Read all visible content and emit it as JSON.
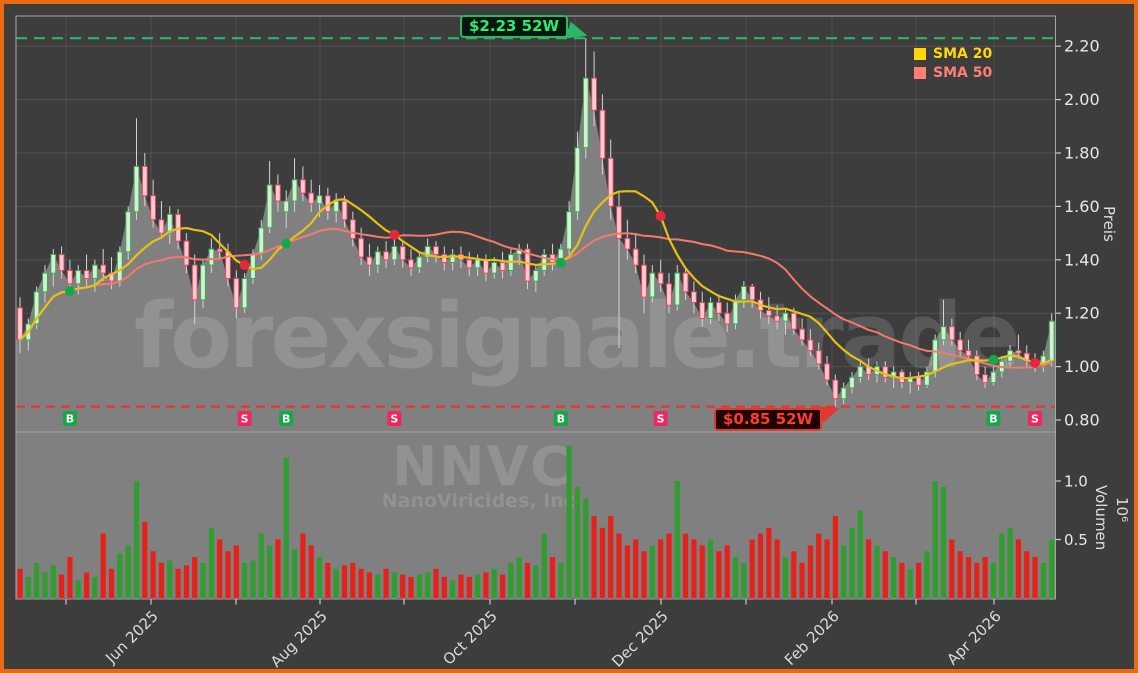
{
  "watermarks": {
    "brand": "forexsignale.trade",
    "symbol": "NNVC",
    "company": "NanoViricides, Inc."
  },
  "legend": [
    {
      "label": "SMA 20",
      "color": "#ffd60a"
    },
    {
      "label": "SMA 50",
      "color": "#ff7f73"
    }
  ],
  "annotations": {
    "high": {
      "label": "$2.23 52W",
      "value": 2.23
    },
    "low": {
      "label": "$0.85 52W",
      "value": 0.85
    }
  },
  "axes": {
    "price": {
      "title": "Preis",
      "tick_labels": [
        "0.80",
        "1.00",
        "1.20",
        "1.40",
        "1.60",
        "1.80",
        "2.00",
        "2.20"
      ],
      "tick_values": [
        0.8,
        1.0,
        1.2,
        1.4,
        1.6,
        1.8,
        2.0,
        2.2
      ]
    },
    "volume": {
      "title": "Volumen",
      "multiplier": "10⁶",
      "tick_labels": [
        "0.5",
        "1.0"
      ],
      "tick_values": [
        0.5,
        1.0
      ]
    },
    "x": {
      "labels": [
        "Jun 2025",
        "Aug 2025",
        "Oct 2025",
        "Dec 2025",
        "Feb 2026",
        "Apr 2026"
      ],
      "label_tick_indices": [
        1,
        3,
        5,
        7,
        9,
        11
      ],
      "minor_tick_count": 12
    }
  },
  "colors": {
    "frame": "#ea6a12",
    "background": "#3d3d3d",
    "area_fill": "#808080",
    "grid": "rgba(255,255,255,0.10)",
    "spine": "#a6a6a6",
    "tick": "#cccccc",
    "tick_text": "#e8e8e8",
    "xtick_text": "#dcdcdc",
    "candle_up": "#2eb34c",
    "candle_up_fill": "#dcead8",
    "candle_down": "#f04460",
    "candle_down_fill": "#f5cdd5",
    "wick": "#d5d5d5",
    "sma20": "#e5c117",
    "sma50": "#f5796d",
    "vol_up": "#2f9e2f",
    "vol_down": "#e62119",
    "high_line": "#2fb566",
    "low_line": "#e53730",
    "buy": "#17a649",
    "sell": "#f2265c",
    "signal_text": "#ffffff",
    "dot_buy": "#17a649",
    "dot_sell": "#e8273c"
  },
  "chart_data": {
    "type": "candlestick",
    "symbol": "NNVC",
    "company": "NanoViricides, Inc.",
    "price_axis": {
      "label": "Preis",
      "range": [
        0.755,
        2.313
      ],
      "ticks": [
        0.8,
        1.0,
        1.2,
        1.4,
        1.6,
        1.8,
        2.0,
        2.2
      ]
    },
    "volume_axis": {
      "label": "Volumen",
      "scale": "10^6",
      "range": [
        0,
        1.42
      ],
      "ticks": [
        0.5,
        1.0
      ]
    },
    "x_axis": {
      "visible_labels": [
        "Jun 2025",
        "Aug 2025",
        "Oct 2025",
        "Dec 2025",
        "Feb 2026",
        "Apr 2026"
      ],
      "label_rotation": 45
    },
    "levels": {
      "high_52w": 2.23,
      "low_52w": 0.85
    },
    "overlays": [
      {
        "name": "SMA 20",
        "window": 10
      },
      {
        "name": "SMA 50",
        "window": 25
      }
    ],
    "signals": [
      {
        "index": 6,
        "type": "B"
      },
      {
        "index": 27,
        "type": "S"
      },
      {
        "index": 32,
        "type": "B"
      },
      {
        "index": 45,
        "type": "S"
      },
      {
        "index": 65,
        "type": "B"
      },
      {
        "index": 77,
        "type": "S"
      },
      {
        "index": 117,
        "type": "B"
      },
      {
        "index": 122,
        "type": "S"
      }
    ],
    "candles_format": [
      "open",
      "high",
      "low",
      "close",
      "volume_millions"
    ],
    "candles": [
      [
        1.22,
        1.26,
        1.05,
        1.1,
        0.25
      ],
      [
        1.1,
        1.18,
        1.06,
        1.16,
        0.18
      ],
      [
        1.16,
        1.3,
        1.14,
        1.28,
        0.3
      ],
      [
        1.28,
        1.38,
        1.24,
        1.35,
        0.22
      ],
      [
        1.35,
        1.44,
        1.3,
        1.42,
        0.28
      ],
      [
        1.42,
        1.45,
        1.33,
        1.36,
        0.2
      ],
      [
        1.36,
        1.4,
        1.28,
        1.31,
        0.35
      ],
      [
        1.31,
        1.38,
        1.27,
        1.36,
        0.15
      ],
      [
        1.36,
        1.42,
        1.3,
        1.33,
        0.22
      ],
      [
        1.33,
        1.4,
        1.28,
        1.38,
        0.18
      ],
      [
        1.38,
        1.44,
        1.32,
        1.35,
        0.55
      ],
      [
        1.35,
        1.41,
        1.29,
        1.32,
        0.25
      ],
      [
        1.32,
        1.45,
        1.3,
        1.43,
        0.38
      ],
      [
        1.43,
        1.6,
        1.4,
        1.58,
        0.45
      ],
      [
        1.58,
        1.93,
        1.55,
        1.75,
        1.0
      ],
      [
        1.75,
        1.8,
        1.6,
        1.64,
        0.65
      ],
      [
        1.64,
        1.7,
        1.52,
        1.55,
        0.4
      ],
      [
        1.55,
        1.62,
        1.48,
        1.5,
        0.3
      ],
      [
        1.5,
        1.6,
        1.46,
        1.57,
        0.32
      ],
      [
        1.57,
        1.59,
        1.44,
        1.47,
        0.25
      ],
      [
        1.47,
        1.5,
        1.35,
        1.38,
        0.28
      ],
      [
        1.38,
        1.42,
        1.16,
        1.25,
        0.35
      ],
      [
        1.25,
        1.4,
        1.22,
        1.38,
        0.3
      ],
      [
        1.38,
        1.48,
        1.35,
        1.44,
        0.6
      ],
      [
        1.44,
        1.5,
        1.4,
        1.43,
        0.5
      ],
      [
        1.43,
        1.46,
        1.3,
        1.33,
        0.4
      ],
      [
        1.33,
        1.36,
        1.18,
        1.22,
        0.45
      ],
      [
        1.22,
        1.35,
        1.2,
        1.33,
        0.3
      ],
      [
        1.33,
        1.44,
        1.31,
        1.42,
        0.32
      ],
      [
        1.42,
        1.55,
        1.4,
        1.52,
        0.55
      ],
      [
        1.52,
        1.77,
        1.5,
        1.68,
        0.45
      ],
      [
        1.68,
        1.72,
        1.58,
        1.62,
        0.5
      ],
      [
        1.58,
        1.66,
        1.52,
        1.62,
        1.2
      ],
      [
        1.62,
        1.78,
        1.58,
        1.7,
        0.42
      ],
      [
        1.7,
        1.75,
        1.62,
        1.65,
        0.55
      ],
      [
        1.65,
        1.7,
        1.58,
        1.61,
        0.45
      ],
      [
        1.61,
        1.68,
        1.56,
        1.64,
        0.35
      ],
      [
        1.64,
        1.67,
        1.55,
        1.58,
        0.3
      ],
      [
        1.58,
        1.65,
        1.54,
        1.62,
        0.25
      ],
      [
        1.62,
        1.64,
        1.52,
        1.55,
        0.28
      ],
      [
        1.55,
        1.58,
        1.45,
        1.48,
        0.3
      ],
      [
        1.48,
        1.52,
        1.38,
        1.41,
        0.25
      ],
      [
        1.41,
        1.46,
        1.34,
        1.38,
        0.22
      ],
      [
        1.38,
        1.45,
        1.35,
        1.43,
        0.2
      ],
      [
        1.43,
        1.47,
        1.37,
        1.4,
        0.25
      ],
      [
        1.4,
        1.48,
        1.38,
        1.45,
        0.22
      ],
      [
        1.45,
        1.47,
        1.37,
        1.4,
        0.2
      ],
      [
        1.4,
        1.44,
        1.34,
        1.37,
        0.18
      ],
      [
        1.37,
        1.43,
        1.35,
        1.41,
        0.2
      ],
      [
        1.41,
        1.48,
        1.39,
        1.45,
        0.22
      ],
      [
        1.45,
        1.47,
        1.39,
        1.42,
        0.25
      ],
      [
        1.42,
        1.45,
        1.36,
        1.39,
        0.18
      ],
      [
        1.39,
        1.44,
        1.36,
        1.42,
        0.15
      ],
      [
        1.42,
        1.45,
        1.37,
        1.4,
        0.2
      ],
      [
        1.4,
        1.43,
        1.34,
        1.37,
        0.18
      ],
      [
        1.37,
        1.42,
        1.34,
        1.4,
        0.2
      ],
      [
        1.4,
        1.42,
        1.32,
        1.35,
        0.22
      ],
      [
        1.35,
        1.41,
        1.33,
        1.39,
        0.25
      ],
      [
        1.39,
        1.43,
        1.33,
        1.36,
        0.2
      ],
      [
        1.36,
        1.44,
        1.34,
        1.42,
        0.3
      ],
      [
        1.42,
        1.46,
        1.38,
        1.44,
        0.35
      ],
      [
        1.44,
        1.46,
        1.29,
        1.32,
        0.3
      ],
      [
        1.32,
        1.38,
        1.28,
        1.36,
        0.28
      ],
      [
        1.36,
        1.44,
        1.34,
        1.42,
        0.55
      ],
      [
        1.42,
        1.46,
        1.36,
        1.39,
        0.35
      ],
      [
        1.39,
        1.46,
        1.37,
        1.44,
        0.3
      ],
      [
        1.44,
        1.62,
        1.42,
        1.58,
        1.3
      ],
      [
        1.58,
        1.88,
        1.55,
        1.82,
        0.95
      ],
      [
        1.82,
        2.23,
        1.78,
        2.08,
        0.85
      ],
      [
        2.08,
        2.18,
        1.9,
        1.96,
        0.7
      ],
      [
        1.96,
        2.02,
        1.72,
        1.78,
        0.6
      ],
      [
        1.78,
        1.85,
        1.55,
        1.6,
        0.7
      ],
      [
        1.6,
        1.65,
        1.07,
        1.48,
        0.55
      ],
      [
        1.48,
        1.55,
        1.4,
        1.44,
        0.45
      ],
      [
        1.44,
        1.5,
        1.35,
        1.38,
        0.5
      ],
      [
        1.38,
        1.42,
        1.2,
        1.26,
        0.4
      ],
      [
        1.26,
        1.38,
        1.24,
        1.35,
        0.45
      ],
      [
        1.35,
        1.4,
        1.28,
        1.31,
        0.5
      ],
      [
        1.31,
        1.35,
        1.2,
        1.23,
        0.55
      ],
      [
        1.23,
        1.38,
        1.21,
        1.35,
        1.0
      ],
      [
        1.35,
        1.37,
        1.25,
        1.28,
        0.55
      ],
      [
        1.28,
        1.32,
        1.2,
        1.24,
        0.5
      ],
      [
        1.24,
        1.28,
        1.15,
        1.18,
        0.45
      ],
      [
        1.18,
        1.26,
        1.16,
        1.24,
        0.5
      ],
      [
        1.24,
        1.27,
        1.17,
        1.2,
        0.4
      ],
      [
        1.2,
        1.24,
        1.13,
        1.16,
        0.45
      ],
      [
        1.16,
        1.27,
        1.14,
        1.25,
        0.35
      ],
      [
        1.25,
        1.32,
        1.22,
        1.3,
        0.3
      ],
      [
        1.3,
        1.31,
        1.22,
        1.25,
        0.5
      ],
      [
        1.25,
        1.28,
        1.18,
        1.21,
        0.55
      ],
      [
        1.21,
        1.26,
        1.16,
        1.19,
        0.6
      ],
      [
        1.19,
        1.23,
        1.14,
        1.17,
        0.5
      ],
      [
        1.17,
        1.22,
        1.12,
        1.2,
        0.35
      ],
      [
        1.2,
        1.22,
        1.12,
        1.14,
        0.4
      ],
      [
        1.14,
        1.18,
        1.08,
        1.1,
        0.3
      ],
      [
        1.1,
        1.14,
        1.04,
        1.06,
        0.45
      ],
      [
        1.06,
        1.09,
        0.99,
        1.01,
        0.55
      ],
      [
        1.01,
        1.04,
        0.93,
        0.95,
        0.5
      ],
      [
        0.95,
        0.97,
        0.85,
        0.88,
        0.7
      ],
      [
        0.88,
        0.94,
        0.86,
        0.92,
        0.45
      ],
      [
        0.92,
        0.98,
        0.9,
        0.96,
        0.6
      ],
      [
        0.96,
        1.02,
        0.94,
        1.0,
        0.75
      ],
      [
        1.0,
        1.03,
        0.95,
        0.97,
        0.5
      ],
      [
        0.97,
        1.02,
        0.94,
        1.0,
        0.45
      ],
      [
        1.0,
        1.02,
        0.94,
        0.96,
        0.4
      ],
      [
        0.96,
        1.0,
        0.92,
        0.98,
        0.35
      ],
      [
        0.98,
        0.99,
        0.92,
        0.94,
        0.3
      ],
      [
        0.94,
        0.98,
        0.9,
        0.96,
        0.25
      ],
      [
        0.96,
        0.98,
        0.91,
        0.93,
        0.3
      ],
      [
        0.93,
        1.0,
        0.92,
        0.98,
        0.4
      ],
      [
        0.98,
        1.12,
        0.96,
        1.1,
        1.0
      ],
      [
        1.1,
        1.25,
        1.08,
        1.15,
        0.95
      ],
      [
        1.15,
        1.18,
        1.08,
        1.1,
        0.5
      ],
      [
        1.1,
        1.13,
        1.04,
        1.06,
        0.4
      ],
      [
        1.06,
        1.1,
        1.02,
        1.04,
        0.35
      ],
      [
        1.04,
        1.06,
        0.95,
        0.97,
        0.3
      ],
      [
        0.97,
        1.0,
        0.92,
        0.94,
        0.35
      ],
      [
        0.94,
        1.0,
        0.93,
        0.98,
        0.3
      ],
      [
        0.98,
        1.04,
        0.96,
        1.02,
        0.55
      ],
      [
        1.02,
        1.08,
        1.0,
        1.06,
        0.6
      ],
      [
        1.06,
        1.12,
        1.03,
        1.05,
        0.5
      ],
      [
        1.05,
        1.08,
        1.0,
        1.02,
        0.4
      ],
      [
        1.02,
        1.05,
        0.98,
        1.0,
        0.35
      ],
      [
        1.0,
        1.06,
        0.98,
        1.04,
        0.3
      ],
      [
        1.02,
        1.2,
        1.0,
        1.17,
        0.5
      ]
    ]
  }
}
